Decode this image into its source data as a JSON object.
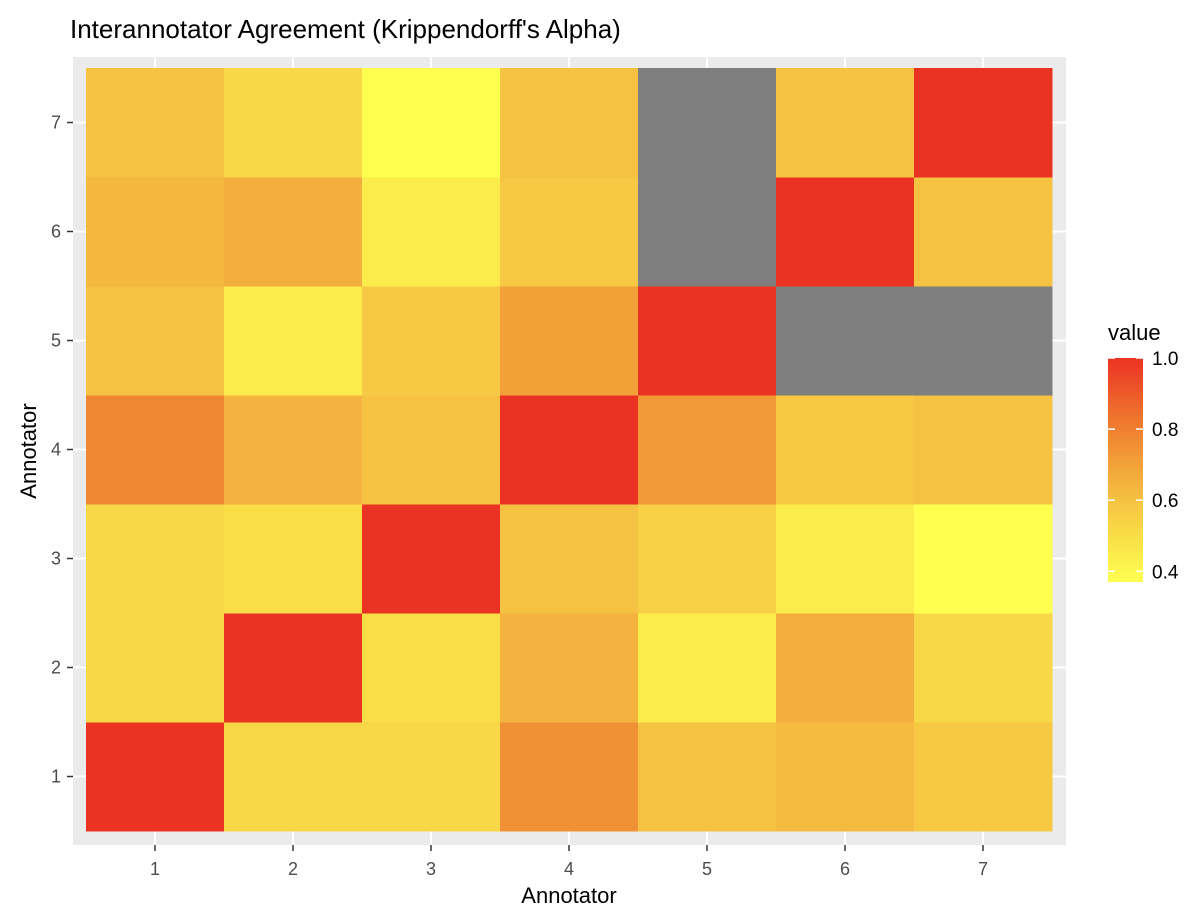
{
  "chart_data": {
    "type": "heatmap",
    "title": "Interannotator Agreement (Krippendorff's Alpha)",
    "xlabel": "Annotator",
    "ylabel": "Annotator",
    "x_categories": [
      "1",
      "2",
      "3",
      "4",
      "5",
      "6",
      "7"
    ],
    "y_categories": [
      "1",
      "2",
      "3",
      "4",
      "5",
      "6",
      "7"
    ],
    "values_by_row_y1_to_y7": [
      [
        1.0,
        0.52,
        0.52,
        0.75,
        0.6,
        0.62,
        0.58
      ],
      [
        0.52,
        1.0,
        0.5,
        0.65,
        0.45,
        0.66,
        0.52
      ],
      [
        0.52,
        0.5,
        1.0,
        0.6,
        0.55,
        0.45,
        0.37
      ],
      [
        0.78,
        0.65,
        0.6,
        1.0,
        0.72,
        0.58,
        0.6
      ],
      [
        0.6,
        0.45,
        0.58,
        0.7,
        1.0,
        null,
        null
      ],
      [
        0.63,
        0.66,
        0.45,
        0.58,
        null,
        1.0,
        0.6
      ],
      [
        0.6,
        0.52,
        0.37,
        0.6,
        null,
        0.6,
        1.0
      ]
    ],
    "legend": {
      "title": "value",
      "ticks": [
        "1.0",
        "0.8",
        "0.6",
        "0.4"
      ],
      "tick_values": [
        1.0,
        0.8,
        0.6,
        0.4
      ],
      "range": [
        0.37,
        1.0
      ],
      "placement": "right"
    },
    "color_stops": [
      [
        0.37,
        "#FFFF50"
      ],
      [
        0.5,
        "#F9DE48"
      ],
      [
        0.6,
        "#F5C242"
      ],
      [
        0.8,
        "#EF8030"
      ],
      [
        1.0,
        "#EB3323"
      ]
    ],
    "na_color": "#7F7F7F",
    "panel_color": "#EBEBEB",
    "grid": true
  }
}
